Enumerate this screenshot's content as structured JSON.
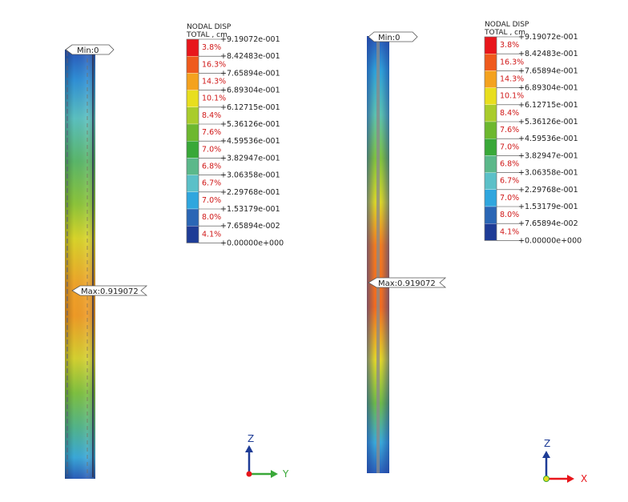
{
  "chart_data": [
    {
      "type": "heatmap",
      "view": "left",
      "title": "NODAL DISP",
      "subtitle": "TOTAL , cm",
      "min_label": "Min:0",
      "max_label": "Max:0.919072",
      "levels": [
        "+9.19072e-001",
        "+8.42483e-001",
        "+7.65894e-001",
        "+6.89304e-001",
        "+6.12715e-001",
        "+5.36126e-001",
        "+4.59536e-001",
        "+3.82947e-001",
        "+3.06358e-001",
        "+2.29768e-001",
        "+1.53179e-001",
        "+7.65894e-002",
        "+0.00000e+000"
      ],
      "level_values": [
        0.919072,
        0.842483,
        0.765894,
        0.689304,
        0.612715,
        0.536126,
        0.459536,
        0.382947,
        0.306358,
        0.229768,
        0.153179,
        0.0765894,
        0.0
      ],
      "percentages": [
        "3.8%",
        "16.3%",
        "14.3%",
        "10.1%",
        "8.4%",
        "7.6%",
        "7.0%",
        "6.8%",
        "6.7%",
        "7.0%",
        "8.0%",
        "4.1%"
      ],
      "colors": [
        "#e8161b",
        "#ef5a1c",
        "#f4a21e",
        "#e8de1e",
        "#a9cc2c",
        "#6db82f",
        "#39a838",
        "#5bb88a",
        "#5bc0c8",
        "#2fa6de",
        "#2a66b5",
        "#1e3c96"
      ],
      "axis": {
        "vertical": "Z",
        "horizontal": "Y"
      }
    },
    {
      "type": "heatmap",
      "view": "right",
      "title": "NODAL DISP",
      "subtitle": "TOTAL , cm",
      "min_label": "Min:0",
      "max_label": "Max:0.919072",
      "levels": [
        "+9.19072e-001",
        "+8.42483e-001",
        "+7.65894e-001",
        "+6.89304e-001",
        "+6.12715e-001",
        "+5.36126e-001",
        "+4.59536e-001",
        "+3.82947e-001",
        "+3.06358e-001",
        "+2.29768e-001",
        "+1.53179e-001",
        "+7.65894e-002",
        "+0.00000e+000"
      ],
      "level_values": [
        0.919072,
        0.842483,
        0.765894,
        0.689304,
        0.612715,
        0.536126,
        0.459536,
        0.382947,
        0.306358,
        0.229768,
        0.153179,
        0.0765894,
        0.0
      ],
      "percentages": [
        "3.8%",
        "16.3%",
        "14.3%",
        "10.1%",
        "8.4%",
        "7.6%",
        "7.0%",
        "6.8%",
        "6.7%",
        "7.0%",
        "8.0%",
        "4.1%"
      ],
      "colors": [
        "#e8161b",
        "#ef5a1c",
        "#f4a21e",
        "#e8de1e",
        "#a9cc2c",
        "#6db82f",
        "#39a838",
        "#5bb88a",
        "#5bc0c8",
        "#2fa6de",
        "#2a66b5",
        "#1e3c96"
      ],
      "axis": {
        "vertical": "Z",
        "horizontal": "X"
      }
    }
  ]
}
